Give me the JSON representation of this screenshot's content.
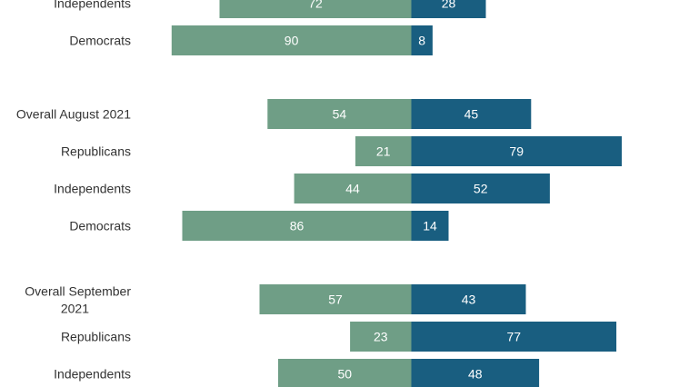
{
  "chart_data": {
    "type": "bar",
    "orientation": "horizontal-diverging",
    "title": "",
    "xlabel": "",
    "ylabel": "",
    "grid": false,
    "legend": "none",
    "colors": {
      "left": "#6f9e86",
      "right": "#195e80",
      "label_text": "#ffffff",
      "category_text": "#333333"
    },
    "groups": [
      {
        "rows": [
          {
            "category": "Independents",
            "left": 72,
            "right": 28
          },
          {
            "category": "Democrats",
            "left": 90,
            "right": 8
          }
        ]
      },
      {
        "rows": [
          {
            "category": "Overall August 2021",
            "left": 54,
            "right": 45
          },
          {
            "category": "Republicans",
            "left": 21,
            "right": 79
          },
          {
            "category": "Independents",
            "left": 44,
            "right": 52
          },
          {
            "category": "Democrats",
            "left": 86,
            "right": 14
          }
        ]
      },
      {
        "rows": [
          {
            "category": "Overall September 2021",
            "left": 57,
            "right": 43
          },
          {
            "category": "Republicans",
            "left": 23,
            "right": 77
          },
          {
            "category": "Independents",
            "left": 50,
            "right": 48
          }
        ]
      }
    ]
  }
}
